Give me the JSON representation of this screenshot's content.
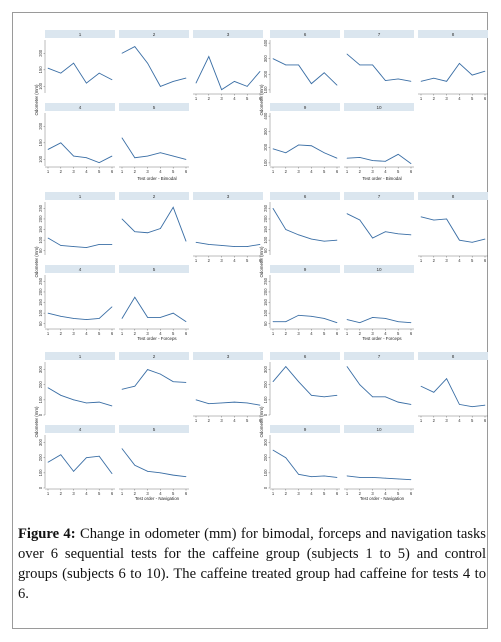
{
  "ui": {
    "caption_label": "Figure 4:",
    "caption_text": "Change in odometer (mm) for bimodal, forceps and navigation tasks over 6 sequential tests for the caffeine group (subjects 1 to 5) and control groups (subjects 6 to 10). The caffeine treated group had caffeine for tests 4 to 6."
  },
  "colors": {
    "line": "#3a6ea5",
    "title_bar": "#dbe6ef",
    "axis": "#555555"
  },
  "chart_data": [
    {
      "type": "line",
      "group": "caffeine",
      "task": "Bimodal",
      "xlabel": "Test order - Bimodal",
      "ylabel": "Odometer (mm)",
      "x": [
        1,
        2,
        3,
        4,
        5,
        6
      ],
      "ylim": [
        80,
        240
      ],
      "yticks": [
        100,
        150,
        200
      ],
      "series": [
        {
          "name": "1",
          "values": [
            155,
            140,
            170,
            110,
            140,
            120
          ]
        },
        {
          "name": "2",
          "values": [
            200,
            220,
            170,
            100,
            115,
            125
          ]
        },
        {
          "name": "3",
          "values": [
            110,
            190,
            90,
            115,
            100,
            145
          ]
        },
        {
          "name": "4",
          "values": [
            130,
            150,
            110,
            105,
            90,
            110
          ]
        },
        {
          "name": "5",
          "values": [
            165,
            105,
            110,
            120,
            110,
            100
          ]
        }
      ]
    },
    {
      "type": "line",
      "group": "control",
      "task": "Bimodal",
      "xlabel": "Test order - Bimodal",
      "ylabel": "Odometer (mm)",
      "x": [
        1,
        2,
        3,
        4,
        5,
        6
      ],
      "ylim": [
        80,
        420
      ],
      "yticks": [
        100,
        200,
        300,
        400
      ],
      "series": [
        {
          "name": "6",
          "values": [
            300,
            260,
            260,
            140,
            210,
            130
          ]
        },
        {
          "name": "7",
          "values": [
            330,
            260,
            260,
            160,
            170,
            155
          ]
        },
        {
          "name": "8",
          "values": [
            155,
            175,
            155,
            270,
            195,
            220
          ]
        },
        {
          "name": "9",
          "values": [
            190,
            165,
            215,
            210,
            165,
            130
          ]
        },
        {
          "name": "10",
          "values": [
            130,
            135,
            115,
            110,
            155,
            95
          ]
        }
      ]
    },
    {
      "type": "line",
      "group": "caffeine",
      "task": "Forceps",
      "xlabel": "Test order - Forceps",
      "ylabel": "Odometer (mm)",
      "x": [
        1,
        2,
        3,
        4,
        5,
        6
      ],
      "ylim": [
        30,
        280
      ],
      "yticks": [
        50,
        100,
        150,
        200,
        250
      ],
      "series": [
        {
          "name": "1",
          "values": [
            110,
            75,
            70,
            65,
            80,
            80
          ]
        },
        {
          "name": "2",
          "values": [
            200,
            140,
            135,
            155,
            255,
            95
          ]
        },
        {
          "name": "3",
          "values": [
            90,
            80,
            75,
            70,
            70,
            80
          ]
        },
        {
          "name": "4",
          "values": [
            100,
            85,
            75,
            70,
            75,
            130
          ]
        },
        {
          "name": "5",
          "values": [
            75,
            175,
            80,
            80,
            100,
            60
          ]
        }
      ]
    },
    {
      "type": "line",
      "group": "control",
      "task": "Forceps",
      "xlabel": "Test order - Forceps",
      "ylabel": "Odometer (mm)",
      "x": [
        1,
        2,
        3,
        4,
        5,
        6
      ],
      "ylim": [
        30,
        280
      ],
      "yticks": [
        50,
        100,
        150,
        200,
        250
      ],
      "series": [
        {
          "name": "6",
          "values": [
            250,
            150,
            125,
            105,
            95,
            100
          ]
        },
        {
          "name": "7",
          "values": [
            225,
            195,
            110,
            140,
            130,
            125
          ]
        },
        {
          "name": "8",
          "values": [
            210,
            195,
            200,
            100,
            90,
            105
          ]
        },
        {
          "name": "9",
          "values": [
            60,
            60,
            90,
            85,
            75,
            55
          ]
        },
        {
          "name": "10",
          "values": [
            70,
            55,
            80,
            75,
            60,
            55
          ]
        }
      ]
    },
    {
      "type": "line",
      "group": "caffeine",
      "task": "Navigation",
      "xlabel": "Test order - Navigation",
      "ylabel": "Odometer (mm)",
      "x": [
        1,
        2,
        3,
        4,
        5,
        6
      ],
      "ylim": [
        0,
        350
      ],
      "yticks": [
        0,
        100,
        200,
        300
      ],
      "series": [
        {
          "name": "1",
          "values": [
            180,
            130,
            100,
            80,
            85,
            60
          ]
        },
        {
          "name": "2",
          "values": [
            170,
            190,
            300,
            270,
            220,
            215
          ]
        },
        {
          "name": "3",
          "values": [
            100,
            75,
            80,
            85,
            80,
            65
          ]
        },
        {
          "name": "4",
          "values": [
            170,
            220,
            110,
            200,
            210,
            95
          ]
        },
        {
          "name": "5",
          "values": [
            260,
            150,
            110,
            100,
            85,
            75
          ]
        }
      ]
    },
    {
      "type": "line",
      "group": "control",
      "task": "Navigation",
      "xlabel": "Test order - Navigation",
      "ylabel": "Odometer (mm)",
      "x": [
        1,
        2,
        3,
        4,
        5,
        6
      ],
      "ylim": [
        0,
        350
      ],
      "yticks": [
        0,
        100,
        200,
        300
      ],
      "series": [
        {
          "name": "6",
          "values": [
            220,
            320,
            220,
            130,
            120,
            130
          ]
        },
        {
          "name": "7",
          "values": [
            320,
            200,
            120,
            120,
            85,
            70
          ]
        },
        {
          "name": "8",
          "values": [
            190,
            150,
            240,
            70,
            55,
            65
          ]
        },
        {
          "name": "9",
          "values": [
            250,
            200,
            90,
            75,
            80,
            70
          ]
        },
        {
          "name": "10",
          "values": [
            80,
            70,
            70,
            65,
            60,
            55
          ]
        }
      ]
    }
  ]
}
